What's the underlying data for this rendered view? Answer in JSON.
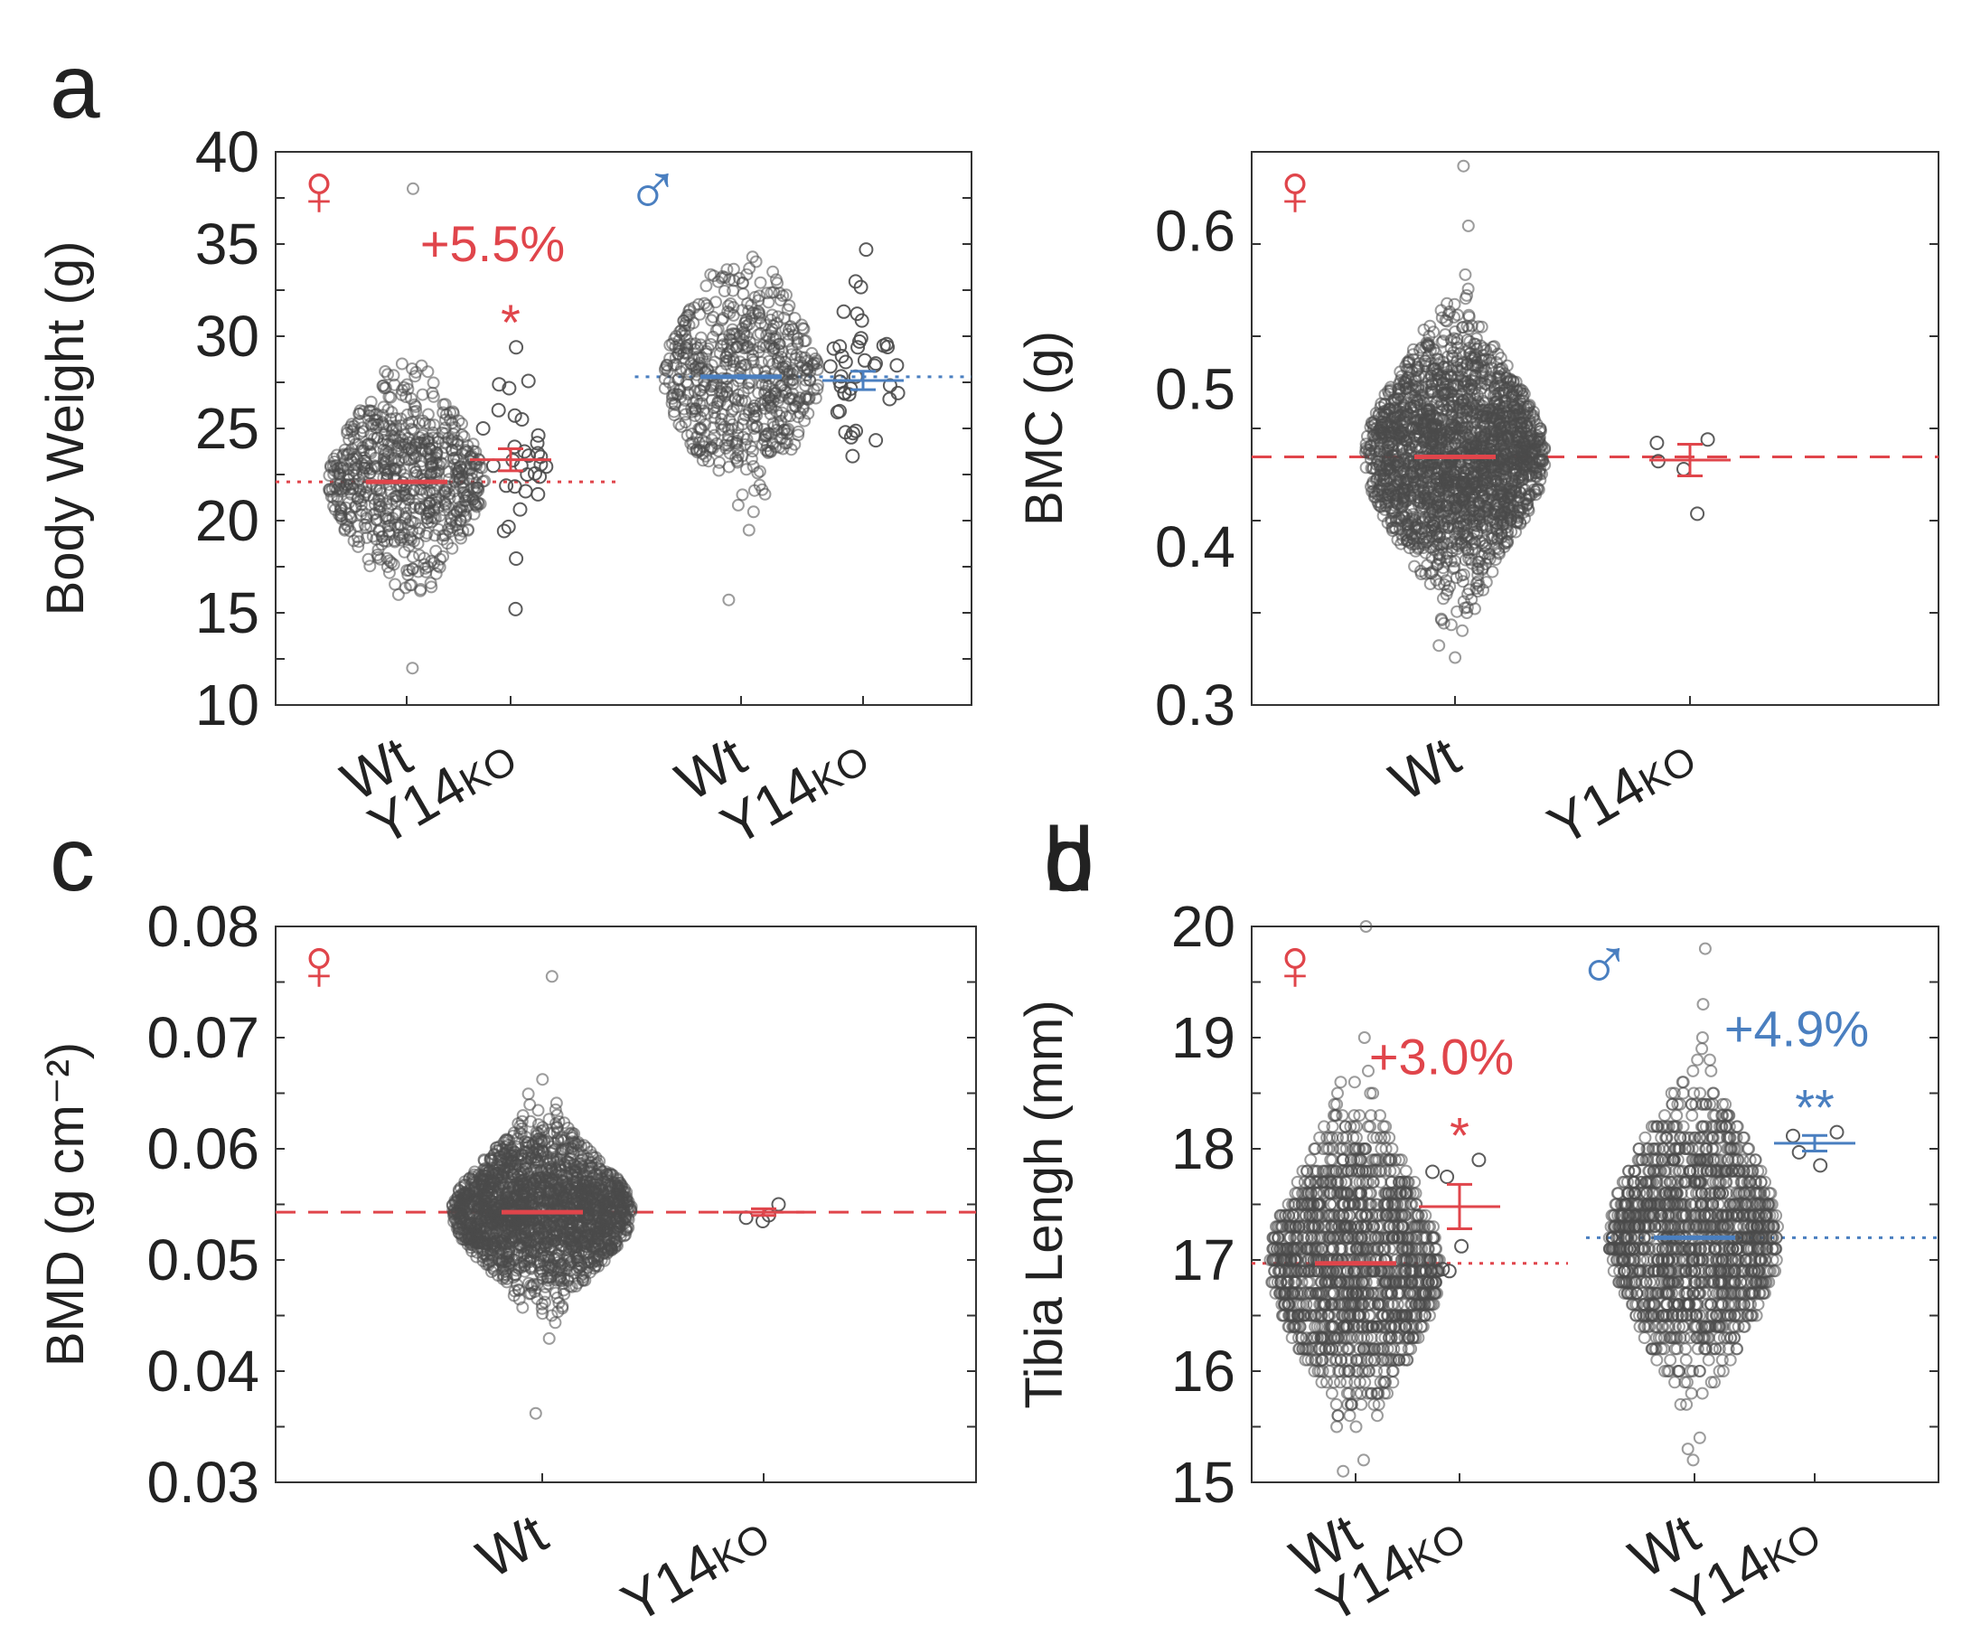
{
  "colors": {
    "female": "#e0454b",
    "male": "#4a7fc0",
    "points": "#4a4a4a",
    "axis": "#333333"
  },
  "chart_data": [
    {
      "panel": "a",
      "type": "scatter",
      "ylabel": "Body Weight (g)",
      "ylim": [
        10,
        40
      ],
      "yticks": [
        "10",
        "15",
        "20",
        "25",
        "30",
        "35",
        "40"
      ],
      "categories": [
        {
          "main": "Wt",
          "sub": ""
        },
        {
          "main": "Y14",
          "sub": "KO"
        },
        {
          "main": "Wt",
          "sub": ""
        },
        {
          "main": "Y14",
          "sub": "KO"
        }
      ],
      "groups": [
        {
          "sex": "female",
          "pos": 1,
          "mean": 22.1,
          "sem": 0.1,
          "sd": 2.4,
          "n": 700,
          "min": 12.0,
          "max": 38.0
        },
        {
          "sex": "female",
          "pos": 2,
          "mean": 23.3,
          "sem": 0.6,
          "sd": 2.6,
          "n": 32,
          "min": 15.2,
          "max": 29.4
        },
        {
          "sex": "male",
          "pos": 3,
          "mean": 27.8,
          "sem": 0.15,
          "sd": 2.7,
          "n": 600,
          "min": 15.7,
          "max": 34.3
        },
        {
          "sex": "male",
          "pos": 4,
          "mean": 27.6,
          "sem": 0.5,
          "sd": 2.4,
          "n": 40,
          "min": 23.5,
          "max": 34.7
        }
      ],
      "reference_lines": [
        {
          "sex": "female",
          "value": 22.1,
          "style": "dotted",
          "span": "left"
        },
        {
          "sex": "male",
          "value": 27.8,
          "style": "dotted",
          "span": "right"
        }
      ],
      "annotations": [
        {
          "sex": "female",
          "text": "+5.5%",
          "over": 2
        },
        {
          "sex": "female",
          "text": "*",
          "over": 2
        }
      ],
      "sex_symbols": [
        {
          "sex": "female",
          "glyph": "♀"
        },
        {
          "sex": "male",
          "glyph": "♂"
        }
      ]
    },
    {
      "panel": "b",
      "type": "scatter",
      "ylabel": "BMC (g)",
      "ylim": [
        0.3,
        0.65
      ],
      "yticks": [
        "0.3",
        "0.4",
        "0.5",
        "0.6"
      ],
      "categories": [
        {
          "main": "Wt",
          "sub": ""
        },
        {
          "main": "Y14",
          "sub": "KO"
        }
      ],
      "groups": [
        {
          "sex": "female",
          "pos": 1,
          "mean": 0.457,
          "sem": 0.001,
          "sd": 0.035,
          "n": 2200,
          "min": 0.33,
          "max": 0.641
        },
        {
          "sex": "female",
          "pos": 2,
          "mean": 0.455,
          "sem": 0.01,
          "sd": 0.02,
          "n": 5,
          "min": 0.421,
          "max": 0.468
        }
      ],
      "reference_lines": [
        {
          "sex": "female",
          "value": 0.457,
          "style": "dashed",
          "span": "all"
        }
      ],
      "annotations": [],
      "sex_symbols": [
        {
          "sex": "female",
          "glyph": "♀"
        }
      ]
    },
    {
      "panel": "c",
      "type": "scatter",
      "ylabel": "BMD (g cm⁻²)",
      "ylim": [
        0.03,
        0.08
      ],
      "yticks": [
        "0.03",
        "0.04",
        "0.05",
        "0.06",
        "0.07",
        "0.08"
      ],
      "categories": [
        {
          "main": "Wt",
          "sub": ""
        },
        {
          "main": "Y14",
          "sub": "KO"
        }
      ],
      "groups": [
        {
          "sex": "female",
          "pos": 1,
          "mean": 0.0543,
          "sem": 0.0001,
          "sd": 0.0032,
          "n": 2000,
          "min": 0.0362,
          "max": 0.0755
        },
        {
          "sex": "female",
          "pos": 2,
          "mean": 0.0543,
          "sem": 0.0003,
          "sd": 0.0005,
          "n": 4,
          "min": 0.0535,
          "max": 0.055
        }
      ],
      "reference_lines": [
        {
          "sex": "female",
          "value": 0.0543,
          "style": "dashed",
          "span": "all"
        }
      ],
      "annotations": [],
      "sex_symbols": [
        {
          "sex": "female",
          "glyph": "♀"
        }
      ]
    },
    {
      "panel": "d",
      "type": "scatter",
      "ylabel": "Tibia Lengh (mm)",
      "ylim": [
        15,
        20
      ],
      "yticks": [
        "15",
        "16",
        "17",
        "18",
        "19",
        "20"
      ],
      "categories": [
        {
          "main": "Wt",
          "sub": ""
        },
        {
          "main": "Y14",
          "sub": "KO"
        },
        {
          "main": "Wt",
          "sub": ""
        },
        {
          "main": "Y14",
          "sub": "KO"
        }
      ],
      "groups": [
        {
          "sex": "female",
          "pos": 1,
          "mean": 16.97,
          "sem": 0.02,
          "sd": 0.55,
          "n": 1500,
          "min": 15.1,
          "max": 20.0,
          "step": 0.1
        },
        {
          "sex": "female",
          "pos": 2,
          "mean": 17.48,
          "sem": 0.2,
          "sd": 0.38,
          "n": 6,
          "min": 16.9,
          "max": 17.9
        },
        {
          "sex": "male",
          "pos": 3,
          "mean": 17.2,
          "sem": 0.02,
          "sd": 0.55,
          "n": 1500,
          "min": 15.2,
          "max": 19.8,
          "step": 0.1
        },
        {
          "sex": "male",
          "pos": 4,
          "mean": 18.05,
          "sem": 0.07,
          "sd": 0.12,
          "n": 4,
          "min": 17.85,
          "max": 18.15
        }
      ],
      "reference_lines": [
        {
          "sex": "female",
          "value": 16.97,
          "style": "dotted",
          "span": "left"
        },
        {
          "sex": "male",
          "value": 17.2,
          "style": "dotted",
          "span": "right"
        }
      ],
      "annotations": [
        {
          "sex": "female",
          "text": "+3.0%",
          "over": 2
        },
        {
          "sex": "female",
          "text": "*",
          "over": 2
        },
        {
          "sex": "male",
          "text": "+4.9%",
          "over": 4
        },
        {
          "sex": "male",
          "text": "**",
          "over": 4
        }
      ],
      "sex_symbols": [
        {
          "sex": "female",
          "glyph": "♀"
        },
        {
          "sex": "male",
          "glyph": "♂"
        }
      ]
    }
  ]
}
